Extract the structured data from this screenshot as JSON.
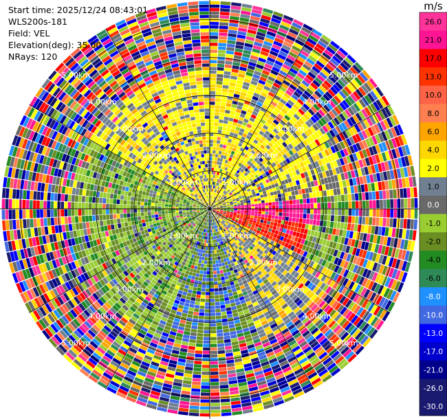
{
  "header": {
    "start_time": "Start time: 2025/12/24 08:43:01",
    "station": "WLS200s-181",
    "field": "Field: VEL",
    "elevation": "Elevation(deg): 35.00",
    "nrays": "NRays: 120"
  },
  "colorbar": {
    "unit": "m/s",
    "bins": [
      {
        "label": "26.0",
        "color": "#ff3399"
      },
      {
        "label": "21.0",
        "color": "#ff1493"
      },
      {
        "label": "17.0",
        "color": "#ff0000"
      },
      {
        "label": "13.0",
        "color": "#ff3300"
      },
      {
        "label": "10.0",
        "color": "#ff6347"
      },
      {
        "label": "8.0",
        "color": "#ff7f50"
      },
      {
        "label": "6.0",
        "color": "#ffa500"
      },
      {
        "label": "4.0",
        "color": "#ffd700"
      },
      {
        "label": "2.0",
        "color": "#ffff00"
      },
      {
        "label": "1.0",
        "color": "#708090"
      },
      {
        "label": "0.0",
        "color": "#696969"
      },
      {
        "label": "-1.0",
        "color": "#9acd32"
      },
      {
        "label": "-2.0",
        "color": "#6b8e23"
      },
      {
        "label": "-4.0",
        "color": "#228b22"
      },
      {
        "label": "-6.0",
        "color": "#2e8b57"
      },
      {
        "label": "-8.0",
        "color": "#1e90ff"
      },
      {
        "label": "-10.0",
        "color": "#4169e1"
      },
      {
        "label": "-13.0",
        "color": "#0000ff"
      },
      {
        "label": "-17.0",
        "color": "#0000cd"
      },
      {
        "label": "-21.0",
        "color": "#00008b"
      },
      {
        "label": "-26.0",
        "color": "#191970"
      },
      {
        "label": "-30.0",
        "color": "#191970"
      }
    ]
  },
  "chart_data": {
    "type": "heatmap",
    "projection": "polar PPI",
    "field": "VEL",
    "units": "m/s",
    "nrays": 120,
    "elevation_deg": 35.0,
    "range_rings_km": [
      1.0,
      2.0,
      3.0,
      4.0,
      5.0
    ],
    "ring_labels": [
      "1.00km",
      "2.00km",
      "3.00km",
      "4.00km",
      "5.00km"
    ],
    "max_range_km": 5.5,
    "azimuth_lines_deg": [
      0,
      30,
      60,
      90,
      120,
      150,
      180,
      210,
      240,
      270,
      300,
      330
    ],
    "velocity_bins_m_s": [
      -30,
      -26,
      -21,
      -17,
      -13,
      -10,
      -8,
      -6,
      -4,
      -2,
      -1,
      0,
      1,
      2,
      4,
      6,
      8,
      10,
      13,
      17,
      21,
      26
    ]
  }
}
